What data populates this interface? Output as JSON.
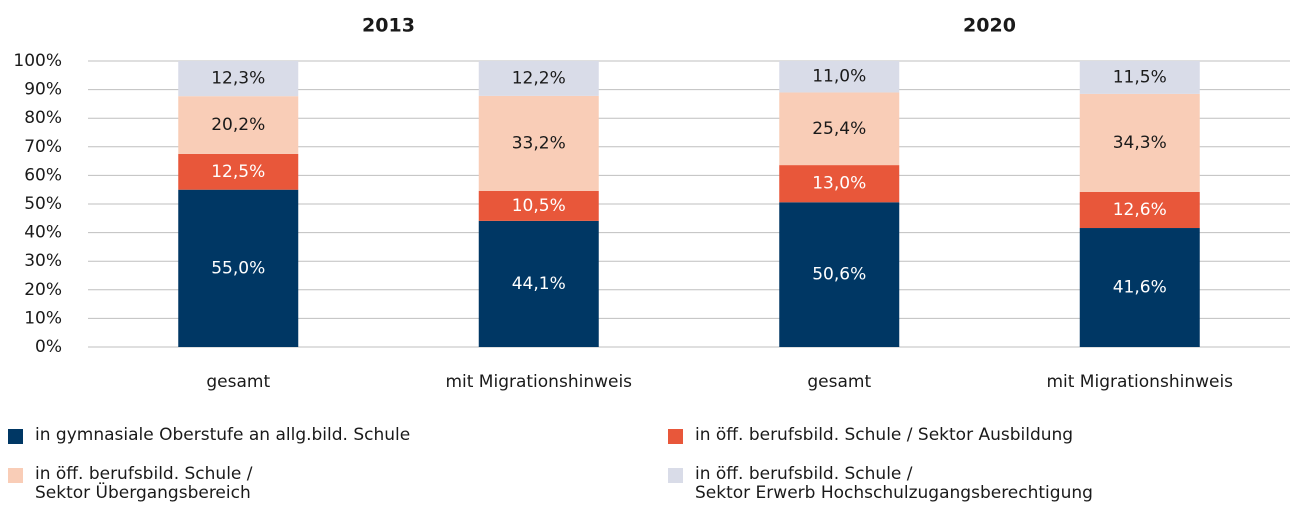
{
  "chart_data": {
    "type": "stacked_bar",
    "groups": [
      "2013",
      "2020"
    ],
    "categories": [
      "gesamt",
      "mit Migrationshinweis",
      "gesamt",
      "mit Migrationshinweis"
    ],
    "series": [
      {
        "name": "in gymnasiale Oberstufe an allg.bild. Schule",
        "color": "#003764",
        "values": [
          55.0,
          44.1,
          50.6,
          41.6
        ],
        "value_labels": [
          "55,0%",
          "44,1%",
          "50,6%",
          "41,6%"
        ]
      },
      {
        "name": "in öff. berufsbild. Schule / Sektor Ausbildung",
        "color": "#e8573a",
        "values": [
          12.5,
          10.5,
          13.0,
          12.6
        ],
        "value_labels": [
          "12,5%",
          "10,5%",
          "13,0%",
          "12,6%"
        ]
      },
      {
        "name": "in öff. berufsbild. Schule /\nSektor Übergangsbereich",
        "color": "#f9cdb7",
        "values": [
          20.2,
          33.2,
          25.4,
          34.3
        ],
        "value_labels": [
          "20,2%",
          "33,2%",
          "25,4%",
          "34,3%"
        ]
      },
      {
        "name": "in öff. berufsbild. Schule /\nSektor Erwerb Hochschulzugangsberechtigung",
        "color": "#d9dce8",
        "values": [
          12.3,
          12.2,
          11.0,
          11.5
        ],
        "value_labels": [
          "12,3%",
          "12,2%",
          "11,0%",
          "11,5%"
        ]
      }
    ],
    "ylim": [
      0,
      100
    ],
    "yticks": [
      {
        "value": 0,
        "label": "0%"
      },
      {
        "value": 10,
        "label": "10%"
      },
      {
        "value": 20,
        "label": "20%"
      },
      {
        "value": 30,
        "label": "30%"
      },
      {
        "value": 40,
        "label": "40%"
      },
      {
        "value": 50,
        "label": "50%"
      },
      {
        "value": 60,
        "label": "60%"
      },
      {
        "value": 70,
        "label": "70%"
      },
      {
        "value": 80,
        "label": "80%"
      },
      {
        "value": 90,
        "label": "90%"
      },
      {
        "value": 100,
        "label": "100%"
      }
    ],
    "grid": true
  }
}
